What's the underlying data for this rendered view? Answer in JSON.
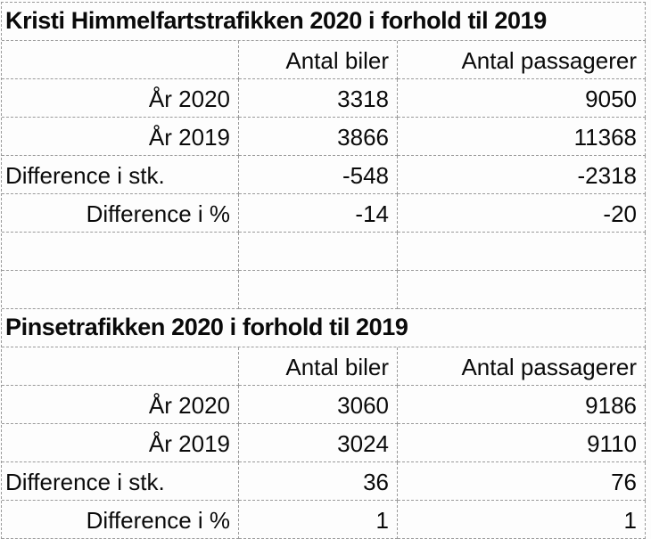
{
  "colors": {
    "background": "#fdfdfd",
    "gridline": "#9a9a9a",
    "text": "#0a0a0a"
  },
  "sheet": {
    "tables": [
      {
        "title": "Kristi Himmelfartstrafikken 2020 i forhold til 2019",
        "col_headers": {
          "biler": "Antal biler",
          "passagerer": "Antal passagerer"
        },
        "rows": [
          {
            "label": "År 2020",
            "biler": "3318",
            "passagerer": "9050"
          },
          {
            "label": "År 2019",
            "biler": "3866",
            "passagerer": "11368"
          },
          {
            "label": "Difference i stk.",
            "biler": "-548",
            "passagerer": "-2318"
          },
          {
            "label": "Difference i %",
            "biler": "-14",
            "passagerer": "-20"
          }
        ]
      },
      {
        "title": "Pinsetrafikken 2020 i forhold til 2019",
        "col_headers": {
          "biler": "Antal biler",
          "passagerer": "Antal passagerer"
        },
        "rows": [
          {
            "label": "År 2020",
            "biler": "3060",
            "passagerer": "9186"
          },
          {
            "label": "År 2019",
            "biler": "3024",
            "passagerer": "9110"
          },
          {
            "label": "Difference i stk.",
            "biler": "36",
            "passagerer": "76"
          },
          {
            "label": "Difference i %",
            "biler": "1",
            "passagerer": "1"
          }
        ]
      }
    ]
  },
  "chart_data": {
    "type": "table",
    "tables": [
      {
        "title": "Kristi Himmelfartstrafikken 2020 i forhold til 2019",
        "columns": [
          "",
          "Antal biler",
          "Antal passagerer"
        ],
        "rows": [
          [
            "År 2020",
            3318,
            9050
          ],
          [
            "År 2019",
            3866,
            11368
          ],
          [
            "Difference i stk.",
            -548,
            -2318
          ],
          [
            "Difference i %",
            -14,
            -20
          ]
        ]
      },
      {
        "title": "Pinsetrafikken 2020 i forhold til 2019",
        "columns": [
          "",
          "Antal biler",
          "Antal passagerer"
        ],
        "rows": [
          [
            "År 2020",
            3060,
            9186
          ],
          [
            "År 2019",
            3024,
            9110
          ],
          [
            "Difference i stk.",
            36,
            76
          ],
          [
            "Difference i %",
            1,
            1
          ]
        ]
      }
    ]
  }
}
